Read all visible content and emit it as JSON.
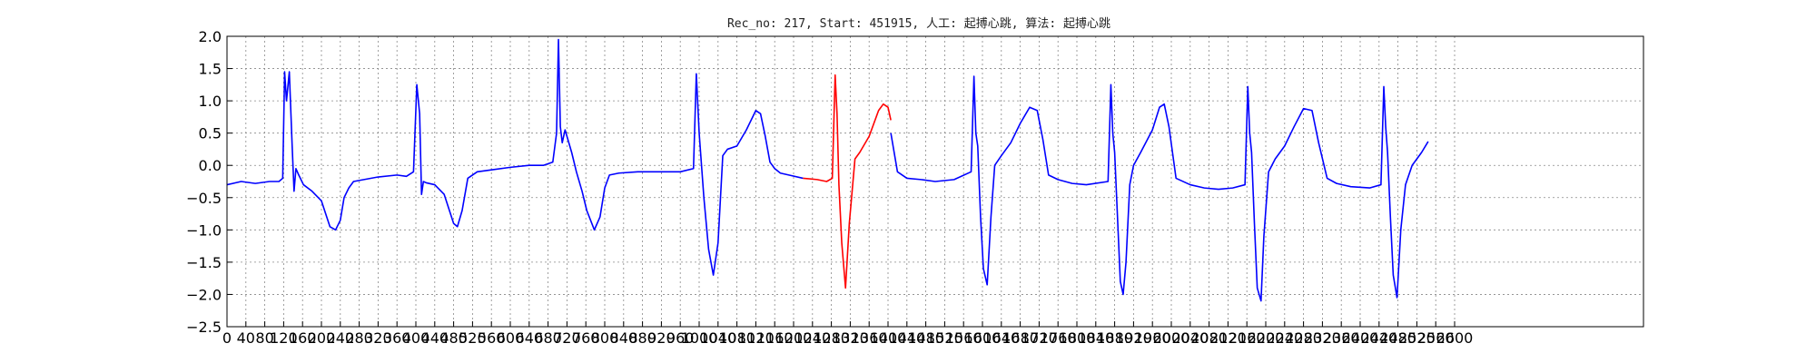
{
  "chart_data": {
    "type": "line",
    "title": "Rec_no: 217, Start: 451915, 人工: 起搏心跳, 算法: 起搏心跳",
    "xlabel": "",
    "ylabel": "",
    "xlim": [
      0,
      3000
    ],
    "ylim": [
      -2.5,
      2.0
    ],
    "grid": true,
    "x_tick_labels": [
      "0",
      "40",
      "80",
      "120",
      "160",
      "200",
      "240",
      "280",
      "320",
      "360",
      "400",
      "440",
      "480",
      "520",
      "560",
      "600",
      "640",
      "680",
      "720",
      "760",
      "800",
      "840",
      "880",
      "920",
      "960",
      "1000",
      "1040",
      "1080",
      "1120",
      "1160",
      "1200",
      "1240",
      "1280",
      "1320",
      "1360",
      "1400",
      "1440",
      "1480",
      "1520",
      "1560",
      "1600",
      "1640",
      "1680",
      "1720",
      "1760",
      "1800",
      "1840",
      "1880",
      "1920",
      "1960",
      "2000",
      "2040",
      "2080",
      "2120",
      "2160",
      "2200",
      "2240",
      "2280",
      "2320",
      "2360",
      "2400",
      "2440",
      "2480",
      "2520",
      "2560",
      "2600"
    ],
    "y_tick_labels": [
      "2.0",
      "1.5",
      "1.0",
      "0.5",
      "0.0",
      "−0.5",
      "−1.0",
      "−1.5",
      "−2.0",
      "−2.5"
    ],
    "y_ticks": [
      2.0,
      1.5,
      1.0,
      0.5,
      0.0,
      -0.5,
      -1.0,
      -1.5,
      -2.0,
      -2.5
    ],
    "series": [
      {
        "color": "#0000ff",
        "x": [
          0,
          30,
          60,
          90,
          110,
          118,
          122,
          126,
          132,
          138,
          142,
          146,
          152,
          162,
          180,
          200,
          218,
          230,
          240,
          248,
          258,
          268,
          290,
          320,
          360,
          380,
          395,
          402,
          408,
          412,
          416,
          422,
          440,
          460,
          480,
          488,
          498,
          510,
          530,
          560,
          600,
          640,
          670,
          690,
          698,
          702,
          706,
          710,
          716,
          722,
          730,
          740,
          752,
          762,
          778,
          790,
          800,
          810,
          830,
          870,
          920,
          960,
          988,
          994,
          1000,
          1010,
          1020,
          1030,
          1040,
          1050,
          1060,
          1080,
          1100,
          1120,
          1130,
          1140,
          1150,
          1160,
          1172,
          1190,
          1220
        ],
        "y": [
          -0.3,
          -0.25,
          -0.28,
          -0.25,
          -0.25,
          -0.2,
          1.45,
          1.0,
          1.45,
          0.3,
          -0.4,
          -0.05,
          -0.15,
          -0.3,
          -0.4,
          -0.55,
          -0.95,
          -1.0,
          -0.85,
          -0.5,
          -0.35,
          -0.25,
          -0.22,
          -0.18,
          -0.15,
          -0.17,
          -0.1,
          1.25,
          0.8,
          -0.45,
          -0.25,
          -0.27,
          -0.3,
          -0.45,
          -0.9,
          -0.95,
          -0.7,
          -0.2,
          -0.1,
          -0.07,
          -0.03,
          0.0,
          0.0,
          0.05,
          0.5,
          1.95,
          0.6,
          0.35,
          0.55,
          0.4,
          0.2,
          -0.1,
          -0.4,
          -0.7,
          -1.0,
          -0.8,
          -0.35,
          -0.15,
          -0.12,
          -0.1,
          -0.1,
          -0.1,
          -0.05,
          1.42,
          0.5,
          -0.5,
          -1.3,
          -1.7,
          -1.2,
          0.15,
          0.25,
          0.3,
          0.55,
          0.85,
          0.8,
          0.45,
          0.05,
          -0.05,
          -0.12,
          -0.15,
          -0.2
        ]
      },
      {
        "color": "#ff0000",
        "x": [
          1220,
          1250,
          1270,
          1282,
          1288,
          1292,
          1296,
          1302,
          1310,
          1318,
          1330,
          1340,
          1360,
          1380,
          1390,
          1400,
          1406
        ],
        "y": [
          -0.2,
          -0.22,
          -0.25,
          -0.2,
          1.4,
          0.8,
          -0.3,
          -1.2,
          -1.9,
          -0.9,
          0.1,
          0.2,
          0.45,
          0.85,
          0.95,
          0.9,
          0.7
        ]
      },
      {
        "color": "#0000ff",
        "x": [
          1406,
          1420,
          1440,
          1470,
          1500,
          1540,
          1576,
          1582,
          1586,
          1590,
          1596,
          1602,
          1610,
          1618,
          1626,
          1640,
          1660,
          1680,
          1700,
          1716,
          1728,
          1740,
          1760,
          1790,
          1820,
          1866,
          1872,
          1876,
          1880,
          1886,
          1892,
          1898,
          1904,
          1912,
          1920,
          1935,
          1960,
          1975,
          1985,
          1995,
          2010,
          2040,
          2070,
          2100,
          2130,
          2156,
          2162,
          2166,
          2170,
          2176,
          2182,
          2190,
          2196,
          2206,
          2220,
          2240,
          2260,
          2280,
          2298,
          2312,
          2330,
          2350,
          2380,
          2420,
          2444,
          2450,
          2454,
          2458,
          2464,
          2470,
          2478,
          2486,
          2496,
          2510,
          2530,
          2544
        ],
        "y": [
          0.5,
          -0.1,
          -0.2,
          -0.22,
          -0.25,
          -0.22,
          -0.1,
          1.38,
          0.5,
          0.3,
          -0.8,
          -1.6,
          -1.85,
          -0.8,
          0.0,
          0.15,
          0.35,
          0.65,
          0.9,
          0.85,
          0.4,
          -0.15,
          -0.22,
          -0.28,
          -0.3,
          -0.25,
          1.25,
          0.5,
          0.2,
          -0.8,
          -1.8,
          -2.0,
          -1.5,
          -0.3,
          0.0,
          0.2,
          0.55,
          0.9,
          0.95,
          0.6,
          -0.2,
          -0.3,
          -0.35,
          -0.37,
          -0.35,
          -0.3,
          1.22,
          0.5,
          0.2,
          -0.9,
          -1.9,
          -2.1,
          -1.1,
          -0.1,
          0.1,
          0.3,
          0.6,
          0.88,
          0.85,
          0.35,
          -0.2,
          -0.28,
          -0.33,
          -0.35,
          -0.3,
          1.22,
          0.6,
          0.2,
          -0.8,
          -1.7,
          -2.05,
          -1.0,
          -0.3,
          0.0,
          0.2,
          0.37
        ]
      }
    ]
  }
}
